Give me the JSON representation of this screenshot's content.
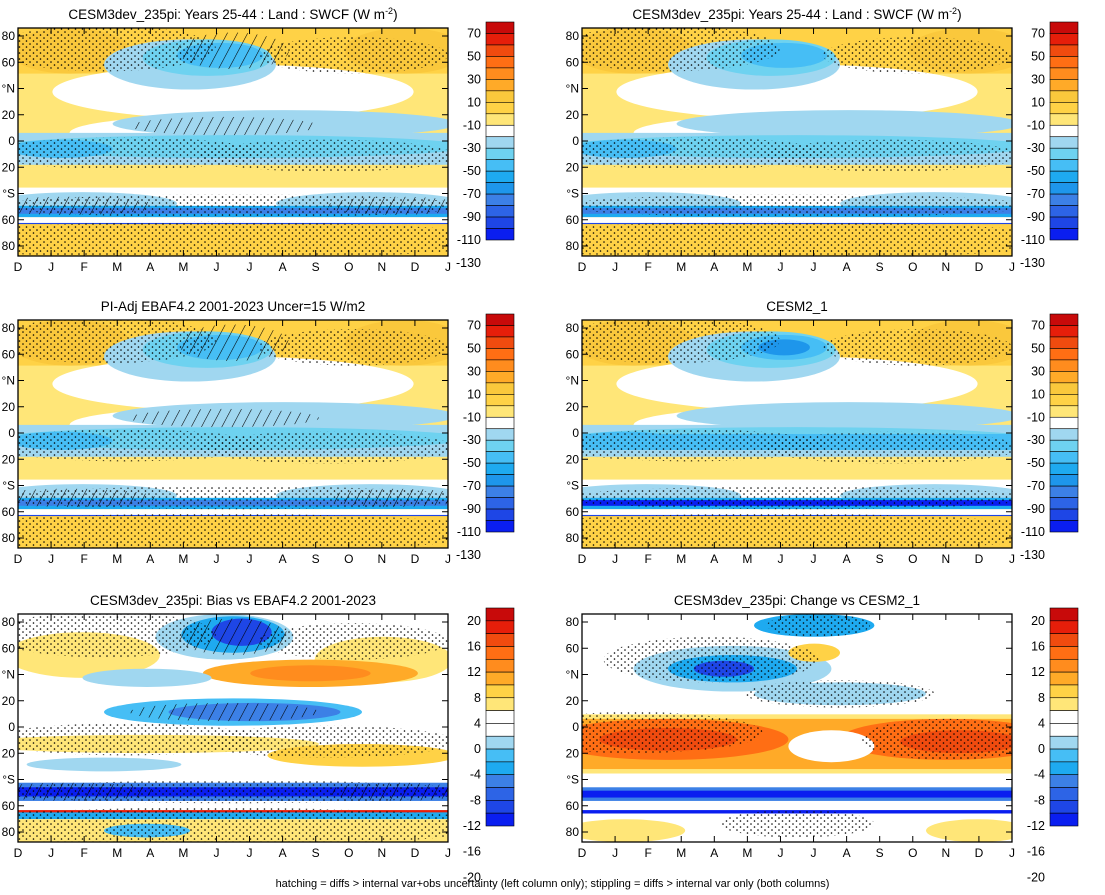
{
  "footer_note": "hatching = diffs > internal var+obs uncertainty (left column only); stippling = diffs > internal var only (both columns)",
  "colors": {
    "cb_state": [
      "#0a1ef0",
      "#1e46e6",
      "#2d64e6",
      "#3c80e6",
      "#1e96eb",
      "#1eaaf0",
      "#46bef5",
      "#6ed2f0",
      "#a0d7f0",
      "#ffffff",
      "#ffe678",
      "#ffd246",
      "#fac83c",
      "#ffaa28",
      "#ff8c1e",
      "#ff6e14",
      "#f04b0f",
      "#e61e0a",
      "#c80a0a"
    ],
    "cb_diff": [
      "#0a1ef0",
      "#1e46e6",
      "#2d64e6",
      "#3c80e6",
      "#1eaaf0",
      "#46bef5",
      "#a0d7f0",
      "#ffffff",
      "#ffffff",
      "#ffe678",
      "#ffd246",
      "#ffaa28",
      "#ff8c1e",
      "#ff6e14",
      "#f04b0f",
      "#e61e0a",
      "#c80a0a"
    ]
  },
  "chart_data": [
    {
      "type": "heatmap",
      "panel": "model",
      "title": "CESM3dev_235pi: Years 25-44 : Land : SWCF (W m",
      "title_sup": "-2",
      "title_end": ")",
      "x_ticks": [
        "D",
        "J",
        "F",
        "M",
        "A",
        "M",
        "J",
        "J",
        "A",
        "S",
        "O",
        "N",
        "D",
        "J"
      ],
      "y_ticks": [
        "80",
        "60",
        "°N",
        "20",
        "0",
        "20",
        "°S",
        "60",
        "80"
      ],
      "colorbar_labels": [
        "70",
        "50",
        "30",
        "10",
        "-10",
        "-30",
        "-50",
        "-70",
        "-90",
        "-110",
        "-130"
      ],
      "colorbar_levels": 19,
      "hatching": true,
      "stippling": true
    },
    {
      "type": "heatmap",
      "panel": "model",
      "title": "CESM3dev_235pi: Years 25-44 : Land : SWCF (W m",
      "title_sup": "-2",
      "title_end": ")",
      "x_ticks": [
        "D",
        "J",
        "F",
        "M",
        "A",
        "M",
        "J",
        "J",
        "A",
        "S",
        "O",
        "N",
        "D",
        "J"
      ],
      "y_ticks": [
        "80",
        "60",
        "°N",
        "20",
        "0",
        "20",
        "°S",
        "60",
        "80"
      ],
      "colorbar_labels": [
        "70",
        "50",
        "30",
        "10",
        "-10",
        "-30",
        "-50",
        "-70",
        "-90",
        "-110",
        "-130"
      ],
      "colorbar_levels": 19,
      "hatching": false,
      "stippling": true
    },
    {
      "type": "heatmap",
      "panel": "obs",
      "title": "PI-Adj EBAF4.2 2001-2023 Uncer=15 W/m2",
      "x_ticks": [
        "D",
        "J",
        "F",
        "M",
        "A",
        "M",
        "J",
        "J",
        "A",
        "S",
        "O",
        "N",
        "D",
        "J"
      ],
      "y_ticks": [
        "80",
        "60",
        "°N",
        "20",
        "0",
        "20",
        "°S",
        "60",
        "80"
      ],
      "colorbar_labels": [
        "70",
        "50",
        "30",
        "10",
        "-10",
        "-30",
        "-50",
        "-70",
        "-90",
        "-110",
        "-130"
      ],
      "colorbar_levels": 19,
      "hatching": true,
      "stippling": true
    },
    {
      "type": "heatmap",
      "panel": "ref",
      "title": "CESM2_1",
      "x_ticks": [
        "D",
        "J",
        "F",
        "M",
        "A",
        "M",
        "J",
        "J",
        "A",
        "S",
        "O",
        "N",
        "D",
        "J"
      ],
      "y_ticks": [
        "80",
        "60",
        "°N",
        "20",
        "0",
        "20",
        "°S",
        "60",
        "80"
      ],
      "colorbar_labels": [
        "70",
        "50",
        "30",
        "10",
        "-10",
        "-30",
        "-50",
        "-70",
        "-90",
        "-110",
        "-130"
      ],
      "colorbar_levels": 19,
      "hatching": false,
      "stippling": true
    },
    {
      "type": "heatmap",
      "panel": "bias",
      "title": "CESM3dev_235pi: Bias vs EBAF4.2 2001-2023",
      "x_ticks": [
        "D",
        "J",
        "F",
        "M",
        "A",
        "M",
        "J",
        "J",
        "A",
        "S",
        "O",
        "N",
        "D",
        "J"
      ],
      "y_ticks": [
        "80",
        "60",
        "°N",
        "20",
        "0",
        "20",
        "°S",
        "60",
        "80"
      ],
      "colorbar_labels": [
        "20",
        "16",
        "12",
        "8",
        "4",
        "0",
        "-4",
        "-8",
        "-12",
        "-16",
        "-20"
      ],
      "colorbar_levels": 17,
      "hatching": true,
      "stippling": true
    },
    {
      "type": "heatmap",
      "panel": "change",
      "title": "CESM3dev_235pi: Change vs CESM2_1",
      "x_ticks": [
        "D",
        "J",
        "F",
        "M",
        "A",
        "M",
        "J",
        "J",
        "A",
        "S",
        "O",
        "N",
        "D",
        "J"
      ],
      "y_ticks": [
        "80",
        "60",
        "°N",
        "20",
        "0",
        "20",
        "°S",
        "60",
        "80"
      ],
      "colorbar_labels": [
        "20",
        "16",
        "12",
        "8",
        "4",
        "0",
        "-4",
        "-8",
        "-12",
        "-16",
        "-20"
      ],
      "colorbar_levels": 17,
      "hatching": false,
      "stippling": true
    }
  ]
}
